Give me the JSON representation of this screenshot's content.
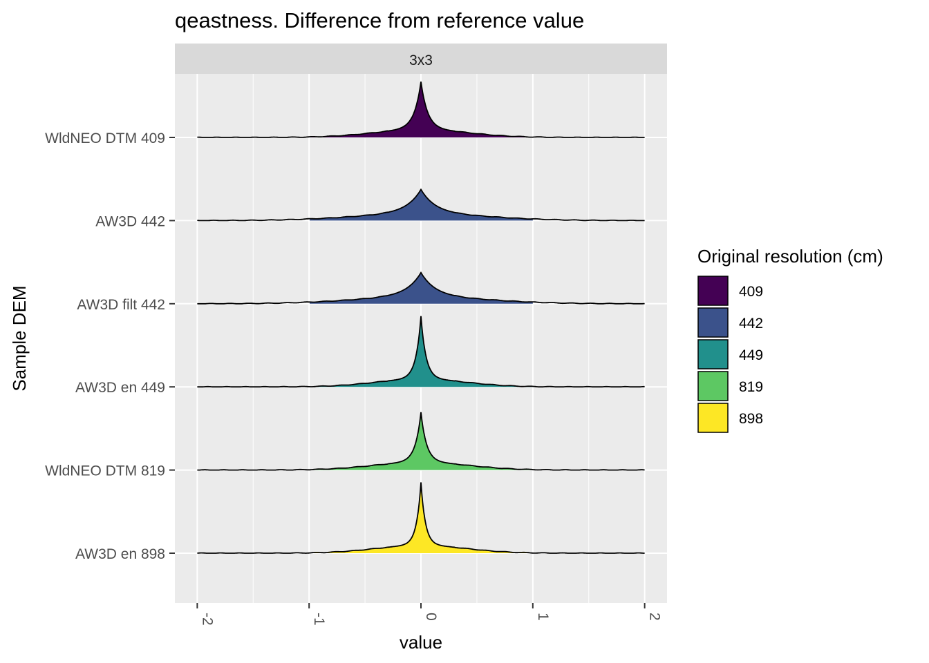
{
  "chart_data": {
    "type": "ridgeline",
    "title": "qeastness. Difference from reference value",
    "facet": "3x3",
    "xlabel": "value",
    "ylabel": "Sample DEM",
    "xlim": [
      -2.2,
      2.2
    ],
    "x_ticks": [
      "-2",
      "-1",
      "0",
      "1",
      "2"
    ],
    "x_tick_values": [
      -2,
      -1,
      0,
      1,
      2
    ],
    "grid": true,
    "legend": {
      "title": "Original resolution (cm)",
      "position": "right",
      "entries": [
        {
          "label": "409",
          "color": "#440154"
        },
        {
          "label": "442",
          "color": "#3B528B"
        },
        {
          "label": "449",
          "color": "#21908C"
        },
        {
          "label": "819",
          "color": "#5DC863"
        },
        {
          "label": "898",
          "color": "#FDE725"
        }
      ]
    },
    "series": [
      {
        "category": "WldNEO DTM 409",
        "resolution": "409",
        "color": "#440154",
        "range": [
          -2,
          2
        ],
        "peak": 0.74,
        "width": 0.06,
        "tail": 0.12,
        "tail_width": 0.42
      },
      {
        "category": "AW3D 442",
        "resolution": "442",
        "color": "#3B528B",
        "range": [
          -2,
          2
        ],
        "peak": 0.38,
        "width": 0.13,
        "tail": 0.1,
        "tail_width": 0.6
      },
      {
        "category": "AW3D filt 442",
        "resolution": "442",
        "color": "#3B528B",
        "range": [
          -2,
          2
        ],
        "peak": 0.38,
        "width": 0.13,
        "tail": 0.1,
        "tail_width": 0.6
      },
      {
        "category": "AW3D en 449",
        "resolution": "449",
        "color": "#21908C",
        "range": [
          -2,
          2
        ],
        "peak": 0.97,
        "width": 0.045,
        "tail": 0.12,
        "tail_width": 0.4
      },
      {
        "category": "WldNEO DTM 819",
        "resolution": "819",
        "color": "#5DC863",
        "range": [
          -2,
          2
        ],
        "peak": 0.77,
        "width": 0.05,
        "tail": 0.12,
        "tail_width": 0.42
      },
      {
        "category": "AW3D en 898",
        "resolution": "898",
        "color": "#FDE725",
        "range": [
          -2,
          2
        ],
        "peak": 0.97,
        "width": 0.04,
        "tail": 0.12,
        "tail_width": 0.4
      }
    ],
    "fill_range": [
      -1,
      1
    ]
  }
}
